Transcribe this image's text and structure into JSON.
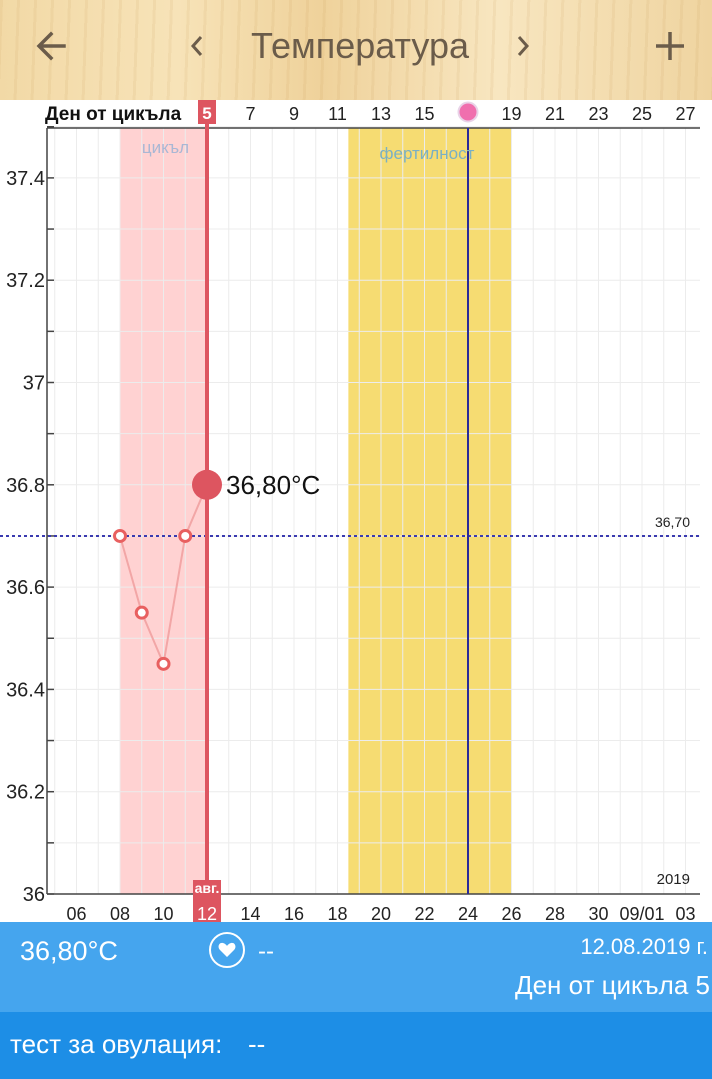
{
  "header": {
    "title": "Температура",
    "back_icon": "arrow-left-icon",
    "prev_icon": "chevron-left-icon",
    "next_icon": "chevron-right-icon",
    "add_icon": "plus-icon"
  },
  "chart_data": {
    "type": "line",
    "top_axis_label": "Ден от цикъла",
    "cycle_day_ticks": [
      "5",
      "7",
      "9",
      "11",
      "13",
      "15",
      "17",
      "19",
      "21",
      "23",
      "25",
      "27"
    ],
    "ovulation_marker_day": 17,
    "date_ticks": [
      "06",
      "08",
      "10",
      "12",
      "14",
      "16",
      "18",
      "20",
      "22",
      "24",
      "26",
      "28",
      "30",
      "09/01",
      "03"
    ],
    "selected_month_label": "авг.",
    "selected_date_label": "12",
    "y_ticks": [
      "36",
      "36.2",
      "36.4",
      "36.6",
      "36.8",
      "37",
      "37.2",
      "37.4"
    ],
    "ylim": [
      36.0,
      37.5
    ],
    "year_label": "2019",
    "series": [
      {
        "x": [
          "2019-08-08",
          "2019-08-09",
          "2019-08-10",
          "2019-08-11",
          "2019-08-12"
        ],
        "y": [
          36.7,
          36.55,
          36.45,
          36.7,
          36.8
        ]
      }
    ],
    "cycle_band": {
      "label": "цикъл",
      "from": "2019-08-08",
      "to": "2019-08-12",
      "color": "#ffd2d2"
    },
    "fertility_band": {
      "label": "фертилност",
      "from": "2019-08-19",
      "to": "2019-08-26",
      "color": "#f6dc72"
    },
    "ovulation_line_date": "2019-08-24",
    "cover_line": {
      "value": 36.7,
      "label": "36,70"
    },
    "selected_value_label": "36,80°C",
    "colors": {
      "accent": "#dd5560",
      "cover": "#3a3ab0",
      "ovulation_line": "#2a2a9a",
      "dot_stroke": "#e86060",
      "line": "#f2a6a6"
    }
  },
  "info": {
    "temperature": "36,80°C",
    "heart_icon": "heart-icon",
    "heart_value": "--",
    "date": "12.08.2019 г.",
    "cycle_day": "Ден от цикъла 5"
  },
  "ovulation_test": {
    "label": "тест за овулация:",
    "value": "--"
  }
}
